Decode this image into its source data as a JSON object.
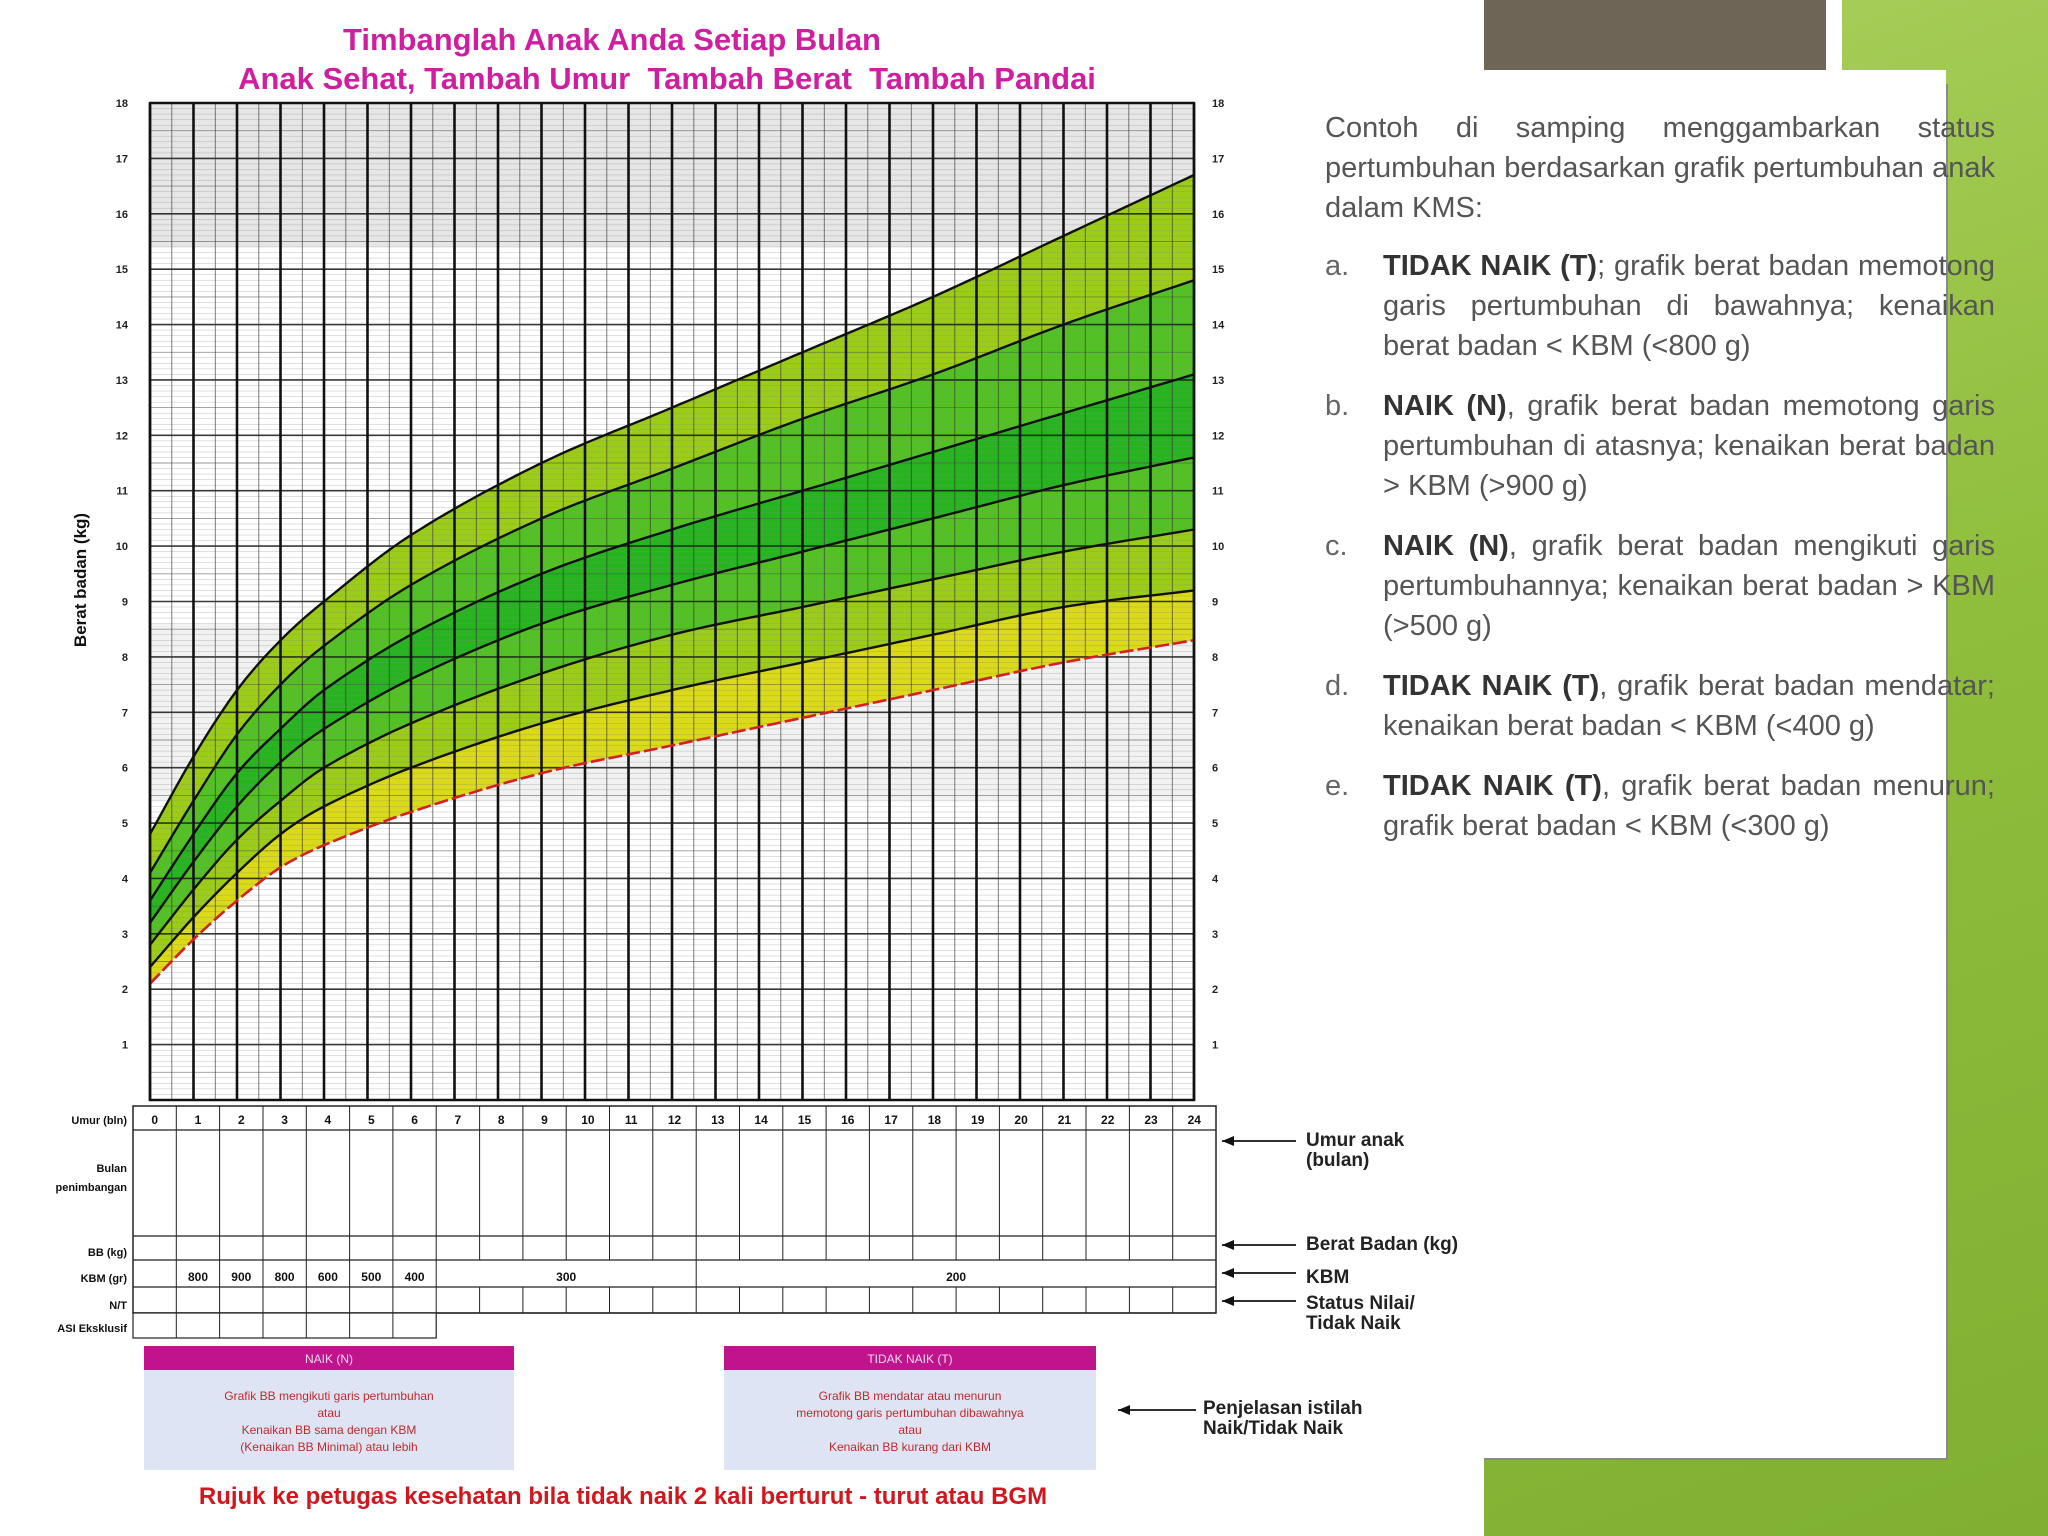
{
  "chart_data": {
    "type": "line",
    "title": "Timbanglah Anak Anda Setiap Bulan",
    "subtitle": "Anak Sehat, Tambah Umur  Tambah Berat  Tambah Pandai",
    "ylabel": "Berat badan (kg)",
    "xlim": [
      0,
      24
    ],
    "ylim": [
      0,
      18
    ],
    "y_ticks": [
      "1",
      "2",
      "3",
      "4",
      "5",
      "6",
      "7",
      "8",
      "9",
      "10",
      "11",
      "12",
      "13",
      "14",
      "15",
      "16",
      "17",
      "18"
    ],
    "x": [
      0,
      1,
      2,
      3,
      4,
      6,
      9,
      12,
      15,
      18,
      21,
      24
    ],
    "series": [
      {
        "values": [
          2.1,
          2.9,
          3.6,
          4.2,
          4.6,
          5.2,
          5.9,
          6.4,
          6.9,
          7.4,
          7.9,
          8.3
        ]
      },
      {
        "values": [
          2.4,
          3.3,
          4.1,
          4.8,
          5.3,
          6.0,
          6.8,
          7.4,
          7.9,
          8.4,
          8.9,
          9.2
        ]
      },
      {
        "values": [
          2.8,
          3.8,
          4.7,
          5.4,
          6.0,
          6.8,
          7.7,
          8.4,
          8.9,
          9.4,
          9.9,
          10.3
        ]
      },
      {
        "values": [
          3.2,
          4.3,
          5.3,
          6.1,
          6.7,
          7.6,
          8.6,
          9.3,
          9.9,
          10.5,
          11.1,
          11.6
        ]
      },
      {
        "values": [
          3.6,
          4.8,
          5.9,
          6.7,
          7.4,
          8.4,
          9.5,
          10.3,
          11.0,
          11.7,
          12.4,
          13.1
        ]
      },
      {
        "values": [
          4.1,
          5.4,
          6.6,
          7.5,
          8.2,
          9.3,
          10.5,
          11.4,
          12.3,
          13.1,
          14.0,
          14.8
        ]
      },
      {
        "values": [
          4.8,
          6.2,
          7.4,
          8.3,
          9.0,
          10.2,
          11.5,
          12.5,
          13.5,
          14.5,
          15.6,
          16.7
        ]
      }
    ],
    "grid": true,
    "band_colors": [
      "#dada18",
      "#9ccd16",
      "#52c223",
      "#26b41f",
      "#52c223",
      "#9ccd16"
    ]
  },
  "table": {
    "umur_label": "Umur (bln)",
    "months": [
      "0",
      "1",
      "2",
      "3",
      "4",
      "5",
      "6",
      "7",
      "8",
      "9",
      "10",
      "11",
      "12",
      "13",
      "14",
      "15",
      "16",
      "17",
      "18",
      "19",
      "20",
      "21",
      "22",
      "23",
      "24"
    ],
    "bulan_label": "Bulan penimbangan",
    "bb_label": "BB (kg)",
    "kbm_label": "KBM (gr)",
    "kbm_values": [
      "800",
      "900",
      "800",
      "600",
      "500",
      "400",
      "300",
      "200"
    ],
    "nt_label": "N/T",
    "asi_label": "ASI Eksklusif"
  },
  "annotations": {
    "umur_anak": [
      "Umur anak",
      "(bulan)"
    ],
    "berat_badan": "Berat Badan (kg)",
    "kbm": "KBM",
    "status": [
      "Status Nilai/",
      "Tidak Naik"
    ],
    "penjelasan": [
      "Penjelasan istilah",
      "Naik/Tidak Naik"
    ]
  },
  "legend_boxes": {
    "naik": {
      "header": "NAIK (N)",
      "lines": [
        "Grafik BB mengikuti garis pertumbuhan",
        "atau",
        "Kenaikan BB sama dengan KBM",
        "(Kenaikan BB Minimal) atau lebih"
      ]
    },
    "tidak_naik": {
      "header": "TIDAK NAIK (T)",
      "lines": [
        "Grafik BB mendatar atau menurun",
        "memotong garis pertumbuhan dibawahnya",
        "atau",
        "Kenaikan BB kurang dari KBM"
      ]
    }
  },
  "footer": "Rujuk ke petugas kesehatan bila tidak naik 2 kali berturut - turut atau BGM",
  "description": {
    "intro": "Contoh di samping menggambarkan status pertumbuhan berdasarkan grafik pertumbuhan anak dalam KMS:",
    "items": [
      {
        "letter": "a.",
        "bold": "TIDAK NAIK (T)",
        "text": "; grafik berat badan memotong garis pertumbuhan di bawahnya; kenaikan berat badan < KBM (<800 g)"
      },
      {
        "letter": "b.",
        "bold": "NAIK (N)",
        "text": ", grafik berat badan memotong garis pertumbuhan di atasnya; kenaikan berat badan > KBM (>900 g)"
      },
      {
        "letter": "c.",
        "bold": "NAIK (N)",
        "text": ", grafik berat badan mengikuti garis pertumbuhannya; kenaikan berat badan > KBM (>500 g)"
      },
      {
        "letter": "d.",
        "bold": "TIDAK NAIK (T)",
        "text": ", grafik berat badan mendatar; kenaikan berat badan < KBM (<400 g)"
      },
      {
        "letter": "e.",
        "bold": "TIDAK NAIK (T)",
        "text": ", grafik berat badan menurun; grafik berat badan < KBM (<300 g)"
      }
    ]
  }
}
